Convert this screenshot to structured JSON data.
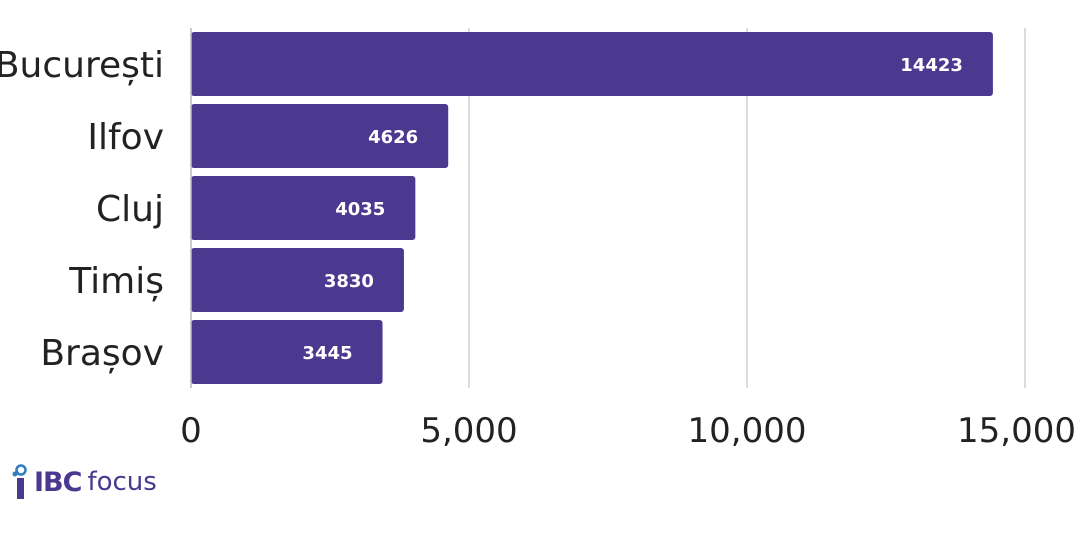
{
  "chart_data": {
    "type": "bar",
    "orientation": "horizontal",
    "categories": [
      "București",
      "Ilfov",
      "Cluj",
      "Timiș",
      "Brașov"
    ],
    "values": [
      14423,
      4626,
      4035,
      3830,
      3445
    ],
    "data_labels": [
      "14423",
      "4626",
      "4035",
      "3830",
      "3445"
    ],
    "xlim": [
      0,
      15000
    ],
    "xticks": [
      0,
      5000,
      10000,
      15000
    ],
    "xtick_labels": [
      "0",
      "5,000",
      "10,000",
      "15,000"
    ],
    "grid": "vertical",
    "bar_color": "#4b3990",
    "grid_color": "#d0d0d0"
  },
  "logo": {
    "brand": "IBC",
    "product": "focus",
    "color": "#4b3990",
    "accent_color": "#2f7dc1",
    "icon": "ibc-focus-logo-icon"
  }
}
